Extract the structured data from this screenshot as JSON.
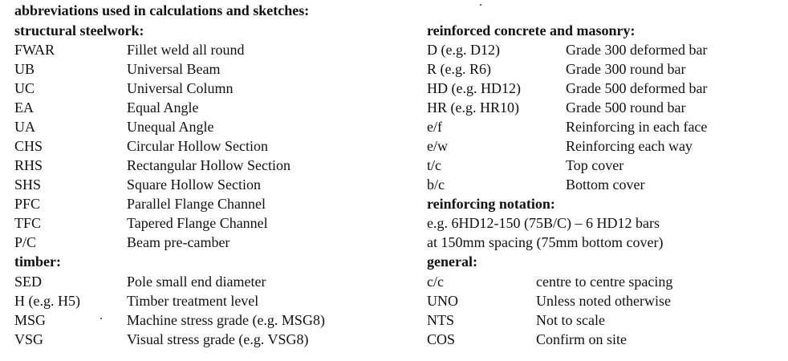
{
  "title": "abbreviations used in calculations and sketches:",
  "structural_steelwork": {
    "heading": "structural steelwork:",
    "rows": [
      {
        "abbr": "FWAR",
        "desc": "Fillet weld all round"
      },
      {
        "abbr": "UB",
        "desc": "Universal Beam"
      },
      {
        "abbr": "UC",
        "desc": "Universal Column"
      },
      {
        "abbr": "EA",
        "desc": "Equal Angle"
      },
      {
        "abbr": "UA",
        "desc": "Unequal Angle"
      },
      {
        "abbr": "CHS",
        "desc": "Circular Hollow Section"
      },
      {
        "abbr": "RHS",
        "desc": "Rectangular Hollow Section"
      },
      {
        "abbr": "SHS",
        "desc": "Square Hollow Section"
      },
      {
        "abbr": "PFC",
        "desc": "Parallel Flange Channel"
      },
      {
        "abbr": "TFC",
        "desc": "Tapered Flange Channel"
      },
      {
        "abbr": "P/C",
        "desc": "Beam pre-camber"
      }
    ]
  },
  "timber": {
    "heading": "timber:",
    "rows": [
      {
        "abbr": "SED",
        "desc": "Pole small end diameter"
      },
      {
        "abbr": "H (e.g. H5)",
        "desc": "Timber treatment level"
      },
      {
        "abbr": "MSG",
        "desc": "Machine stress grade (e.g. MSG8)"
      },
      {
        "abbr": "VSG",
        "desc": "Visual stress grade (e.g. VSG8)"
      }
    ]
  },
  "reinforced_concrete": {
    "heading": "reinforced concrete and masonry:",
    "rows": [
      {
        "abbr": "D (e.g. D12)",
        "desc": "Grade 300 deformed bar"
      },
      {
        "abbr": "R (e.g. R6)",
        "desc": "Grade 300 round bar"
      },
      {
        "abbr": "HD (e.g. HD12)",
        "desc": "Grade 500 deformed bar"
      },
      {
        "abbr": "HR (e.g. HR10)",
        "desc": "Grade 500 round bar"
      },
      {
        "abbr": "e/f",
        "desc": "Reinforcing in each face"
      },
      {
        "abbr": "e/w",
        "desc": "Reinforcing each way"
      },
      {
        "abbr": "t/c",
        "desc": "Top cover"
      },
      {
        "abbr": "b/c",
        "desc": "Bottom cover"
      }
    ]
  },
  "reinforcing_notation": {
    "heading": "reinforcing notation:",
    "lines": [
      "e.g. 6HD12-150 (75B/C) – 6 HD12 bars",
      "at 150mm spacing (75mm bottom cover)"
    ]
  },
  "general": {
    "heading": "general:",
    "rows": [
      {
        "abbr": "c/c",
        "desc": "centre to centre spacing"
      },
      {
        "abbr": "UNO",
        "desc": "Unless noted otherwise"
      },
      {
        "abbr": "NTS",
        "desc": "Not to scale"
      },
      {
        "abbr": "COS",
        "desc": "Confirm on site"
      }
    ]
  }
}
